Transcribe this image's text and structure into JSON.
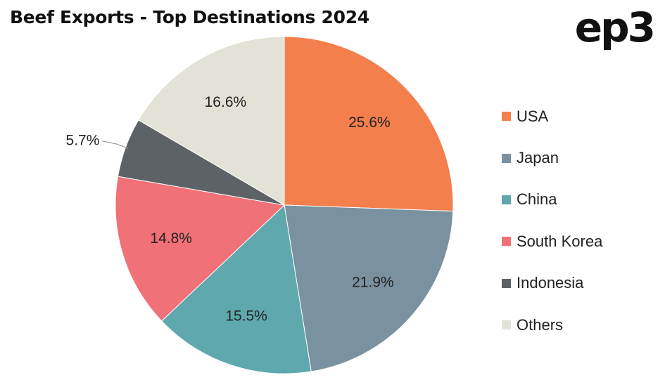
{
  "logo_text": "ep3",
  "chart_data": {
    "type": "pie",
    "title": "Beef Exports - Top Destinations 2024",
    "categories": [
      "USA",
      "Japan",
      "China",
      "South Korea",
      "Indonesia",
      "Others"
    ],
    "values": [
      25.6,
      21.9,
      15.5,
      14.8,
      5.7,
      16.6
    ],
    "value_labels": [
      "25.6%",
      "21.9%",
      "15.5%",
      "14.8%",
      "5.7%",
      "16.6%"
    ],
    "colors": [
      "#F27F4C",
      "#7A929F",
      "#5FA8AE",
      "#F07177",
      "#5D6266",
      "#E3E2D7"
    ],
    "legend": "right",
    "start_angle": "12 o'clock",
    "direction": "clockwise"
  }
}
